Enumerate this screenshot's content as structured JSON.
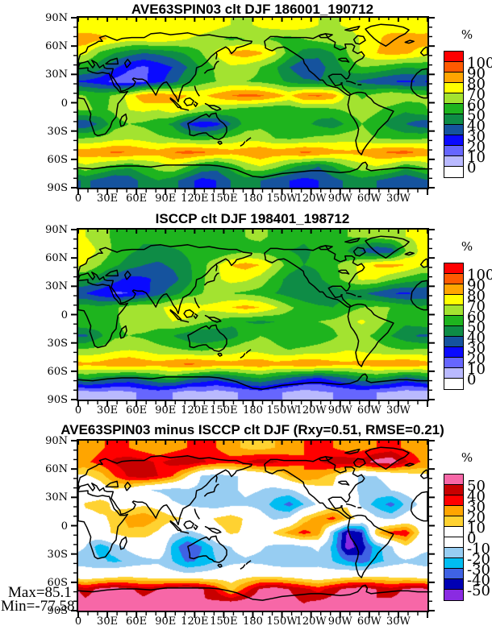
{
  "stats": {
    "max": "Max=85.1",
    "min": "Min=-77.58"
  },
  "chart_data": [
    {
      "type": "heatmap",
      "title": "AVE63SPIN03 clt DJF 186001_190712",
      "units": "%",
      "lon_ticks": [
        "0",
        "30E",
        "60E",
        "90E",
        "120E",
        "150E",
        "180",
        "150W",
        "120W",
        "90W",
        "60W",
        "30W"
      ],
      "lat_ticks": [
        "90N",
        "60N",
        "30N",
        "0",
        "30S",
        "60S",
        "90S"
      ],
      "lon_range": [
        0,
        360
      ],
      "lat_range": [
        90,
        -90
      ],
      "levels": [
        0,
        10,
        20,
        30,
        40,
        50,
        60,
        70,
        80,
        90,
        100
      ],
      "palette": [
        "#ffffff",
        "#b9b9ff",
        "#6666ff",
        "#0a0aff",
        "#15539e",
        "#0e8c46",
        "#1eb41e",
        "#a3e330",
        "#ffff00",
        "#ffa500",
        "#ff5a00",
        "#ff0000"
      ],
      "legend_labels": [
        "100",
        "90",
        "80",
        "70",
        "60",
        "50",
        "40",
        "30",
        "20",
        "10",
        "0"
      ],
      "grid_lon_start": 7.5,
      "grid_dlon": 15,
      "grid_lat_start": 82.5,
      "grid_dlat": -15,
      "values": [
        [
          72,
          75,
          78,
          74,
          70,
          72,
          76,
          80,
          78,
          74,
          70,
          68,
          72,
          75,
          78,
          74,
          70,
          68,
          72,
          76,
          78,
          74,
          72,
          70
        ],
        [
          86,
          82,
          78,
          74,
          76,
          78,
          74,
          70,
          66,
          62,
          58,
          60,
          62,
          58,
          56,
          60,
          64,
          66,
          62,
          72,
          78,
          84,
          86,
          86
        ],
        [
          72,
          58,
          50,
          44,
          40,
          42,
          46,
          52,
          60,
          72,
          82,
          86,
          82,
          72,
          56,
          46,
          42,
          50,
          60,
          72,
          80,
          84,
          82,
          76
        ],
        [
          52,
          44,
          32,
          22,
          18,
          24,
          30,
          40,
          52,
          62,
          68,
          66,
          60,
          52,
          40,
          32,
          36,
          44,
          54,
          60,
          58,
          54,
          50,
          52
        ],
        [
          28,
          24,
          16,
          12,
          18,
          26,
          36,
          48,
          56,
          60,
          62,
          60,
          58,
          54,
          48,
          42,
          40,
          44,
          42,
          38,
          34,
          30,
          28,
          30
        ],
        [
          60,
          56,
          62,
          74,
          88,
          90,
          84,
          80,
          78,
          84,
          90,
          94,
          92,
          86,
          78,
          90,
          92,
          86,
          66,
          58,
          64,
          70,
          66,
          62
        ],
        [
          62,
          58,
          62,
          70,
          72,
          70,
          76,
          72,
          66,
          62,
          58,
          54,
          52,
          50,
          52,
          56,
          54,
          58,
          62,
          66,
          62,
          56,
          52,
          58
        ],
        [
          32,
          42,
          56,
          60,
          58,
          54,
          48,
          30,
          22,
          26,
          40,
          54,
          58,
          56,
          54,
          52,
          48,
          44,
          52,
          60,
          54,
          46,
          40,
          34
        ],
        [
          60,
          62,
          66,
          68,
          66,
          62,
          60,
          56,
          54,
          58,
          62,
          66,
          64,
          60,
          58,
          60,
          62,
          64,
          66,
          64,
          60,
          58,
          56,
          58
        ],
        [
          86,
          88,
          92,
          90,
          86,
          84,
          90,
          94,
          92,
          88,
          84,
          86,
          90,
          86,
          88,
          92,
          90,
          84,
          82,
          84,
          88,
          92,
          94,
          88
        ],
        [
          68,
          62,
          56,
          52,
          58,
          64,
          70,
          60,
          48,
          44,
          54,
          64,
          70,
          64,
          54,
          46,
          40,
          50,
          60,
          66,
          70,
          64,
          54,
          60
        ],
        [
          42,
          36,
          30,
          34,
          44,
          50,
          44,
          34,
          26,
          30,
          40,
          46,
          40,
          34,
          30,
          26,
          30,
          36,
          42,
          46,
          40,
          34,
          30,
          36
        ]
      ]
    },
    {
      "type": "heatmap",
      "title": "ISCCP clt DJF 198401_198712",
      "units": "%",
      "lon_ticks": [
        "0",
        "30E",
        "60E",
        "90E",
        "120E",
        "150E",
        "180",
        "150W",
        "120W",
        "90W",
        "60W",
        "30W"
      ],
      "lat_ticks": [
        "90N",
        "60N",
        "30N",
        "0",
        "30S",
        "60S",
        "90S"
      ],
      "lon_range": [
        0,
        360
      ],
      "lat_range": [
        90,
        -90
      ],
      "levels": [
        0,
        10,
        20,
        30,
        40,
        50,
        60,
        70,
        80,
        90,
        100
      ],
      "palette": [
        "#ffffff",
        "#b9b9ff",
        "#6666ff",
        "#0a0aff",
        "#15539e",
        "#0e8c46",
        "#1eb41e",
        "#a3e330",
        "#ffff00",
        "#ffa500",
        "#ff5a00",
        "#ff0000"
      ],
      "legend_labels": [
        "100",
        "90",
        "80",
        "70",
        "60",
        "50",
        "40",
        "30",
        "20",
        "10",
        "0"
      ],
      "grid_lon_start": 7.5,
      "grid_dlon": 15,
      "grid_lat_start": 82.5,
      "grid_dlat": -15,
      "values": [
        [
          70,
          64,
          58,
          55,
          52,
          55,
          58,
          55,
          52,
          54,
          58,
          60,
          62,
          58,
          55,
          52,
          55,
          58,
          60,
          62,
          64,
          66,
          70,
          72
        ],
        [
          76,
          68,
          58,
          52,
          48,
          46,
          48,
          52,
          55,
          50,
          54,
          58,
          56,
          54,
          50,
          48,
          52,
          56,
          50,
          38,
          30,
          34,
          60,
          72
        ],
        [
          70,
          60,
          52,
          45,
          40,
          38,
          42,
          48,
          56,
          68,
          80,
          84,
          80,
          68,
          56,
          50,
          52,
          58,
          64,
          74,
          82,
          84,
          80,
          72
        ],
        [
          50,
          44,
          34,
          26,
          28,
          32,
          36,
          46,
          58,
          68,
          74,
          72,
          66,
          56,
          46,
          42,
          48,
          56,
          64,
          72,
          70,
          62,
          56,
          52
        ],
        [
          30,
          24,
          18,
          20,
          26,
          36,
          46,
          54,
          60,
          62,
          60,
          58,
          56,
          50,
          46,
          42,
          40,
          44,
          46,
          42,
          36,
          30,
          28,
          32
        ],
        [
          56,
          52,
          58,
          66,
          70,
          68,
          74,
          78,
          72,
          74,
          80,
          84,
          80,
          72,
          62,
          56,
          52,
          50,
          56,
          60,
          62,
          60,
          56,
          52
        ],
        [
          60,
          56,
          58,
          64,
          68,
          66,
          70,
          68,
          62,
          58,
          52,
          50,
          48,
          50,
          54,
          58,
          60,
          62,
          66,
          72,
          64,
          58,
          52,
          56
        ],
        [
          38,
          48,
          58,
          60,
          58,
          54,
          50,
          44,
          40,
          42,
          46,
          54,
          60,
          58,
          54,
          52,
          54,
          58,
          64,
          62,
          58,
          50,
          44,
          38
        ],
        [
          62,
          64,
          68,
          70,
          68,
          64,
          62,
          60,
          58,
          62,
          64,
          68,
          66,
          62,
          60,
          62,
          64,
          66,
          70,
          68,
          64,
          62,
          60,
          62
        ],
        [
          82,
          84,
          88,
          90,
          86,
          84,
          88,
          92,
          90,
          86,
          84,
          86,
          88,
          84,
          86,
          90,
          88,
          84,
          82,
          84,
          86,
          88,
          90,
          86
        ],
        [
          52,
          46,
          42,
          38,
          44,
          50,
          54,
          44,
          38,
          34,
          40,
          46,
          50,
          44,
          38,
          32,
          28,
          34,
          40,
          46,
          50,
          44,
          36,
          42
        ],
        [
          5,
          8,
          5,
          8,
          12,
          15,
          10,
          5,
          8,
          5,
          8,
          12,
          15,
          12,
          8,
          5,
          8,
          10,
          12,
          15,
          10,
          8,
          5,
          5
        ]
      ]
    },
    {
      "type": "heatmap",
      "title": "AVE63SPIN03 minus ISCCP clt DJF (Rxy=0.51, RMSE=0.21)",
      "units": "%",
      "lon_ticks": [
        "0",
        "30E",
        "60E",
        "90E",
        "120E",
        "150E",
        "180",
        "150W",
        "120W",
        "90W",
        "60W",
        "30W"
      ],
      "lat_ticks": [
        "90N",
        "60N",
        "30N",
        "0",
        "30S",
        "60S",
        "90S"
      ],
      "lon_range": [
        0,
        360
      ],
      "lat_range": [
        90,
        -90
      ],
      "levels": [
        -50,
        -40,
        -30,
        -20,
        -10,
        0,
        10,
        20,
        30,
        40,
        50
      ],
      "palette": [
        "#8a2be2",
        "#0000b4",
        "#3f62e4",
        "#00bdf2",
        "#97cdf2",
        "#ffffff",
        "#ffffff",
        "#ffd231",
        "#ffa500",
        "#ff0000",
        "#c80000",
        "#f767a7"
      ],
      "legend_labels": [
        "50",
        "40",
        "30",
        "20",
        "10",
        "0",
        "-10",
        "-20",
        "-30",
        "-40",
        "-50"
      ],
      "grid_lon_start": 7.5,
      "grid_dlon": 15,
      "grid_lat_start": 82.5,
      "grid_dlat": -15,
      "values": [
        [
          22,
          28,
          34,
          30,
          24,
          20,
          24,
          30,
          34,
          30,
          24,
          18,
          16,
          20,
          26,
          30,
          34,
          30,
          24,
          26,
          30,
          34,
          28,
          24
        ],
        [
          28,
          34,
          42,
          46,
          44,
          38,
          44,
          48,
          42,
          36,
          34,
          40,
          46,
          42,
          34,
          30,
          38,
          46,
          48,
          44,
          55,
          58,
          42,
          30
        ],
        [
          8,
          14,
          30,
          42,
          46,
          40,
          30,
          10,
          -12,
          -16,
          -12,
          -8,
          -4,
          6,
          20,
          30,
          24,
          14,
          -4,
          -12,
          -10,
          -6,
          2,
          6
        ],
        [
          -4,
          2,
          8,
          4,
          -8,
          -12,
          -16,
          -12,
          -14,
          -18,
          -12,
          -8,
          -10,
          -14,
          -12,
          -4,
          4,
          8,
          -6,
          -12,
          -14,
          -10,
          -6,
          -2
        ],
        [
          12,
          14,
          8,
          4,
          8,
          4,
          -8,
          -12,
          -14,
          -18,
          -14,
          -12,
          -14,
          -24,
          -34,
          -20,
          -8,
          4,
          8,
          -14,
          -24,
          -34,
          -18,
          -8
        ],
        [
          4,
          8,
          12,
          24,
          28,
          20,
          14,
          8,
          4,
          12,
          18,
          8,
          -4,
          -12,
          -8,
          14,
          26,
          34,
          16,
          4,
          -8,
          -12,
          -4,
          2
        ],
        [
          -4,
          4,
          12,
          18,
          14,
          8,
          -8,
          -14,
          -8,
          4,
          12,
          8,
          -4,
          12,
          24,
          34,
          26,
          -18,
          -52,
          -40,
          18,
          34,
          38,
          8
        ],
        [
          -10,
          -26,
          -16,
          -6,
          2,
          6,
          -24,
          -40,
          -30,
          -16,
          -10,
          -4,
          -8,
          -14,
          -18,
          -12,
          -8,
          -22,
          -55,
          -45,
          -24,
          -12,
          8,
          -6
        ],
        [
          -14,
          -18,
          -22,
          -18,
          -14,
          -12,
          -20,
          -32,
          -28,
          -20,
          -14,
          -12,
          -14,
          -18,
          -20,
          -16,
          -14,
          -20,
          -30,
          -36,
          -24,
          -16,
          -12,
          -14
        ],
        [
          -4,
          -2,
          2,
          4,
          2,
          -2,
          -4,
          -6,
          -4,
          -2,
          2,
          4,
          6,
          4,
          2,
          -2,
          -4,
          -2,
          2,
          4,
          6,
          4,
          2,
          -2
        ],
        [
          44,
          54,
          58,
          52,
          46,
          50,
          56,
          60,
          52,
          38,
          16,
          34,
          52,
          58,
          50,
          44,
          36,
          46,
          54,
          58,
          50,
          44,
          52,
          56
        ],
        [
          54,
          58,
          60,
          56,
          54,
          58,
          56,
          54,
          50,
          54,
          56,
          58,
          60,
          56,
          54,
          50,
          54,
          56,
          58,
          54,
          50,
          54,
          56,
          58
        ]
      ]
    }
  ]
}
